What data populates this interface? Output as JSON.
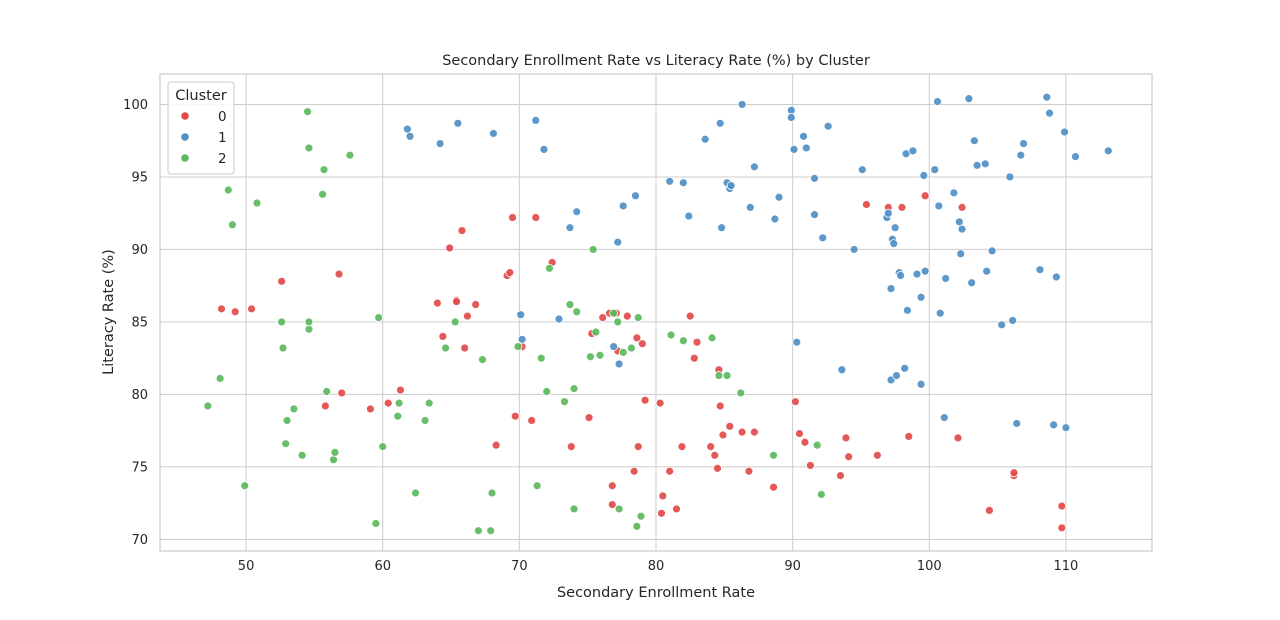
{
  "chart_data": {
    "type": "scatter",
    "title": "Secondary Enrollment Rate vs Literacy Rate (%) by Cluster",
    "xlabel": "Secondary Enrollment Rate",
    "ylabel": "Literacy Rate (%)",
    "xlim": [
      43.7,
      116.3
    ],
    "ylim": [
      69.2,
      102.1
    ],
    "xticks": [
      50,
      60,
      70,
      80,
      90,
      100,
      110
    ],
    "yticks": [
      70,
      75,
      80,
      85,
      90,
      95,
      100
    ],
    "grid": true,
    "legend": {
      "title": "Cluster",
      "placement": "top-left"
    },
    "series": [
      {
        "name": "0",
        "color": "#e24a4a",
        "points": [
          [
            48.2,
            85.9
          ],
          [
            49.2,
            85.7
          ],
          [
            50.4,
            85.9
          ],
          [
            52.6,
            87.8
          ],
          [
            55.8,
            79.2
          ],
          [
            56.8,
            88.3
          ],
          [
            57.0,
            80.1
          ],
          [
            59.1,
            79.0
          ],
          [
            60.4,
            79.4
          ],
          [
            61.3,
            80.3
          ],
          [
            64.0,
            86.3
          ],
          [
            64.4,
            84.0
          ],
          [
            64.9,
            90.1
          ],
          [
            65.4,
            86.5
          ],
          [
            65.4,
            86.4
          ],
          [
            65.8,
            91.3
          ],
          [
            66.0,
            83.2
          ],
          [
            66.2,
            85.4
          ],
          [
            66.8,
            86.2
          ],
          [
            68.3,
            76.5
          ],
          [
            69.1,
            88.2
          ],
          [
            69.3,
            88.4
          ],
          [
            69.5,
            92.2
          ],
          [
            69.7,
            78.5
          ],
          [
            70.2,
            83.3
          ],
          [
            70.9,
            78.2
          ],
          [
            71.2,
            92.2
          ],
          [
            72.4,
            89.1
          ],
          [
            73.8,
            76.4
          ],
          [
            75.1,
            78.4
          ],
          [
            75.3,
            84.2
          ],
          [
            76.1,
            85.3
          ],
          [
            76.6,
            85.6
          ],
          [
            76.8,
            73.7
          ],
          [
            76.8,
            72.4
          ],
          [
            77.1,
            85.6
          ],
          [
            77.2,
            83.0
          ],
          [
            77.9,
            85.4
          ],
          [
            78.4,
            74.7
          ],
          [
            78.6,
            83.9
          ],
          [
            78.7,
            76.4
          ],
          [
            79.0,
            83.5
          ],
          [
            79.2,
            79.6
          ],
          [
            80.3,
            79.4
          ],
          [
            80.4,
            71.8
          ],
          [
            80.5,
            73.0
          ],
          [
            81.0,
            74.7
          ],
          [
            81.5,
            72.1
          ],
          [
            81.9,
            76.4
          ],
          [
            82.5,
            85.4
          ],
          [
            82.8,
            82.5
          ],
          [
            83.0,
            83.6
          ],
          [
            84.0,
            76.4
          ],
          [
            84.3,
            75.8
          ],
          [
            84.5,
            74.9
          ],
          [
            84.6,
            81.7
          ],
          [
            84.7,
            79.2
          ],
          [
            84.9,
            77.2
          ],
          [
            85.4,
            77.8
          ],
          [
            86.3,
            77.4
          ],
          [
            86.8,
            74.7
          ],
          [
            87.2,
            77.4
          ],
          [
            88.6,
            73.6
          ],
          [
            90.2,
            79.5
          ],
          [
            90.5,
            77.3
          ],
          [
            90.9,
            76.7
          ],
          [
            91.3,
            75.1
          ],
          [
            93.5,
            74.4
          ],
          [
            93.9,
            77.0
          ],
          [
            94.1,
            75.7
          ],
          [
            95.4,
            93.1
          ],
          [
            96.2,
            75.8
          ],
          [
            97.0,
            92.9
          ],
          [
            98.0,
            92.9
          ],
          [
            98.5,
            77.1
          ],
          [
            99.7,
            93.7
          ],
          [
            102.1,
            77.0
          ],
          [
            102.4,
            92.9
          ],
          [
            104.4,
            72.0
          ],
          [
            106.2,
            74.4
          ],
          [
            106.2,
            74.6
          ],
          [
            109.7,
            72.3
          ],
          [
            109.7,
            70.8
          ]
        ]
      },
      {
        "name": "1",
        "color": "#4e8fc4",
        "points": [
          [
            61.8,
            98.3
          ],
          [
            62.0,
            97.8
          ],
          [
            64.2,
            97.3
          ],
          [
            65.5,
            98.7
          ],
          [
            68.1,
            98.0
          ],
          [
            70.1,
            85.5
          ],
          [
            70.2,
            83.8
          ],
          [
            71.2,
            98.9
          ],
          [
            71.8,
            96.9
          ],
          [
            72.9,
            85.2
          ],
          [
            73.7,
            91.5
          ],
          [
            74.2,
            92.6
          ],
          [
            76.9,
            83.3
          ],
          [
            77.2,
            90.5
          ],
          [
            77.3,
            82.1
          ],
          [
            77.6,
            93.0
          ],
          [
            78.5,
            93.7
          ],
          [
            81.0,
            94.7
          ],
          [
            82.0,
            94.6
          ],
          [
            82.4,
            92.3
          ],
          [
            83.6,
            97.6
          ],
          [
            84.7,
            98.7
          ],
          [
            84.8,
            91.5
          ],
          [
            85.2,
            94.6
          ],
          [
            85.4,
            94.2
          ],
          [
            85.5,
            94.4
          ],
          [
            86.3,
            100.0
          ],
          [
            86.9,
            92.9
          ],
          [
            87.2,
            95.7
          ],
          [
            88.7,
            92.1
          ],
          [
            89.0,
            93.6
          ],
          [
            89.9,
            99.6
          ],
          [
            89.9,
            99.1
          ],
          [
            90.1,
            96.9
          ],
          [
            90.3,
            83.6
          ],
          [
            90.8,
            97.8
          ],
          [
            91.0,
            97.0
          ],
          [
            91.6,
            94.9
          ],
          [
            91.6,
            92.4
          ],
          [
            92.2,
            90.8
          ],
          [
            92.6,
            98.5
          ],
          [
            93.6,
            81.7
          ],
          [
            94.5,
            90.0
          ],
          [
            95.1,
            95.5
          ],
          [
            96.9,
            92.2
          ],
          [
            97.0,
            92.5
          ],
          [
            97.2,
            81.0
          ],
          [
            97.2,
            87.3
          ],
          [
            97.3,
            90.7
          ],
          [
            97.4,
            90.4
          ],
          [
            97.5,
            91.5
          ],
          [
            97.6,
            81.3
          ],
          [
            97.8,
            88.4
          ],
          [
            97.9,
            88.2
          ],
          [
            98.2,
            81.8
          ],
          [
            98.3,
            96.6
          ],
          [
            98.4,
            85.8
          ],
          [
            98.8,
            96.8
          ],
          [
            99.1,
            88.3
          ],
          [
            99.4,
            80.7
          ],
          [
            99.4,
            86.7
          ],
          [
            99.6,
            95.1
          ],
          [
            99.7,
            88.5
          ],
          [
            100.4,
            95.5
          ],
          [
            100.6,
            100.2
          ],
          [
            100.7,
            93.0
          ],
          [
            100.8,
            85.6
          ],
          [
            101.1,
            78.4
          ],
          [
            101.2,
            88.0
          ],
          [
            101.8,
            93.9
          ],
          [
            102.2,
            91.9
          ],
          [
            102.3,
            89.7
          ],
          [
            102.4,
            91.4
          ],
          [
            102.9,
            100.4
          ],
          [
            103.1,
            87.7
          ],
          [
            103.3,
            97.5
          ],
          [
            103.5,
            95.8
          ],
          [
            104.1,
            95.9
          ],
          [
            104.2,
            88.5
          ],
          [
            104.6,
            89.9
          ],
          [
            105.3,
            84.8
          ],
          [
            105.9,
            95.0
          ],
          [
            106.1,
            85.1
          ],
          [
            106.4,
            78.0
          ],
          [
            106.7,
            96.5
          ],
          [
            106.9,
            97.3
          ],
          [
            108.1,
            88.6
          ],
          [
            108.6,
            100.5
          ],
          [
            108.8,
            99.4
          ],
          [
            109.1,
            77.9
          ],
          [
            109.3,
            88.1
          ],
          [
            109.9,
            98.1
          ],
          [
            110.0,
            77.7
          ],
          [
            110.7,
            96.4
          ],
          [
            113.1,
            96.8
          ]
        ]
      },
      {
        "name": "2",
        "color": "#5cb85c",
        "points": [
          [
            47.2,
            79.2
          ],
          [
            48.1,
            81.1
          ],
          [
            48.7,
            94.1
          ],
          [
            49.0,
            91.7
          ],
          [
            49.9,
            73.7
          ],
          [
            50.8,
            93.2
          ],
          [
            52.6,
            85.0
          ],
          [
            52.7,
            83.2
          ],
          [
            52.9,
            76.6
          ],
          [
            53.0,
            78.2
          ],
          [
            53.5,
            79.0
          ],
          [
            54.1,
            75.8
          ],
          [
            54.5,
            99.5
          ],
          [
            54.6,
            97.0
          ],
          [
            54.6,
            84.5
          ],
          [
            54.6,
            85.0
          ],
          [
            55.6,
            93.8
          ],
          [
            55.7,
            95.5
          ],
          [
            55.9,
            80.2
          ],
          [
            56.4,
            75.5
          ],
          [
            56.5,
            76.0
          ],
          [
            57.6,
            96.5
          ],
          [
            59.5,
            71.1
          ],
          [
            59.7,
            85.3
          ],
          [
            60.0,
            76.4
          ],
          [
            61.2,
            79.4
          ],
          [
            61.1,
            78.5
          ],
          [
            62.4,
            73.2
          ],
          [
            63.1,
            78.2
          ],
          [
            63.4,
            79.4
          ],
          [
            64.6,
            83.2
          ],
          [
            65.3,
            85.0
          ],
          [
            67.0,
            70.6
          ],
          [
            67.3,
            82.4
          ],
          [
            67.9,
            70.6
          ],
          [
            68.0,
            73.2
          ],
          [
            69.9,
            83.3
          ],
          [
            71.3,
            73.7
          ],
          [
            71.6,
            82.5
          ],
          [
            72.0,
            80.2
          ],
          [
            72.2,
            88.7
          ],
          [
            73.3,
            79.5
          ],
          [
            73.7,
            86.2
          ],
          [
            74.0,
            72.1
          ],
          [
            74.0,
            80.4
          ],
          [
            74.2,
            85.7
          ],
          [
            75.2,
            82.6
          ],
          [
            75.4,
            90.0
          ],
          [
            75.6,
            84.3
          ],
          [
            75.9,
            82.7
          ],
          [
            76.9,
            85.6
          ],
          [
            77.2,
            85.0
          ],
          [
            77.3,
            72.1
          ],
          [
            77.6,
            82.9
          ],
          [
            78.2,
            83.2
          ],
          [
            78.6,
            70.9
          ],
          [
            78.7,
            85.3
          ],
          [
            78.9,
            71.6
          ],
          [
            81.1,
            84.1
          ],
          [
            82.0,
            83.7
          ],
          [
            84.1,
            83.9
          ],
          [
            84.6,
            81.3
          ],
          [
            85.2,
            81.3
          ],
          [
            86.2,
            80.1
          ],
          [
            88.6,
            75.8
          ],
          [
            91.8,
            76.5
          ],
          [
            92.1,
            73.1
          ]
        ]
      }
    ]
  }
}
